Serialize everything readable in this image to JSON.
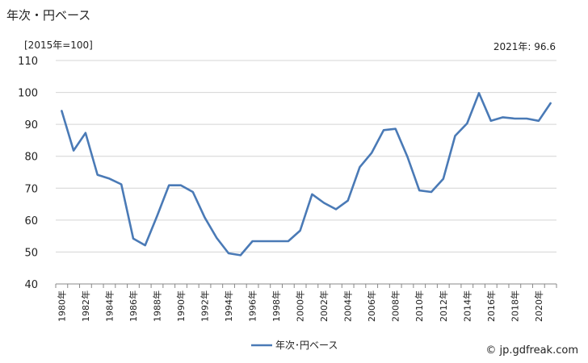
{
  "header": {
    "title": "年次・円ベース",
    "unit": "[2015年=100]",
    "latest": "2021年: 96.6"
  },
  "credit": "© jp.gdfreak.com",
  "chart_data": {
    "type": "line",
    "title": "年次・円ベース",
    "ylabel": "[2015年=100]",
    "ylim": [
      40,
      110
    ],
    "yticks": [
      40,
      50,
      60,
      70,
      80,
      90,
      100,
      110
    ],
    "grid": true,
    "legend": "bottom",
    "x": [
      1980,
      1981,
      1982,
      1983,
      1984,
      1985,
      1986,
      1987,
      1988,
      1989,
      1990,
      1991,
      1992,
      1993,
      1994,
      1995,
      1996,
      1997,
      1998,
      1999,
      2000,
      2001,
      2002,
      2003,
      2004,
      2005,
      2006,
      2007,
      2008,
      2009,
      2010,
      2011,
      2012,
      2013,
      2014,
      2015,
      2016,
      2017,
      2018,
      2019,
      2020,
      2021
    ],
    "xtick_labels": [
      "1980年",
      "1982年",
      "1984年",
      "1986年",
      "1988年",
      "1990年",
      "1992年",
      "1994年",
      "1996年",
      "1998年",
      "2000年",
      "2002年",
      "2004年",
      "2006年",
      "2008年",
      "2010年",
      "2012年",
      "2014年",
      "2016年",
      "2018年",
      "2020年"
    ],
    "series": [
      {
        "name": "年次･円ベース",
        "color": "#4a7ab6",
        "values": [
          94.2,
          81.8,
          87.3,
          74.2,
          73.0,
          71.2,
          54.2,
          52.1,
          61.3,
          70.9,
          70.9,
          68.8,
          60.8,
          54.4,
          49.6,
          49.0,
          53.4,
          53.4,
          53.4,
          53.4,
          56.7,
          68.1,
          65.4,
          63.4,
          66.1,
          76.6,
          81.1,
          88.2,
          88.6,
          79.8,
          69.3,
          68.8,
          72.9,
          86.4,
          90.3,
          99.8,
          91.1,
          92.2,
          91.8,
          91.8,
          91.1,
          96.6
        ]
      }
    ]
  }
}
